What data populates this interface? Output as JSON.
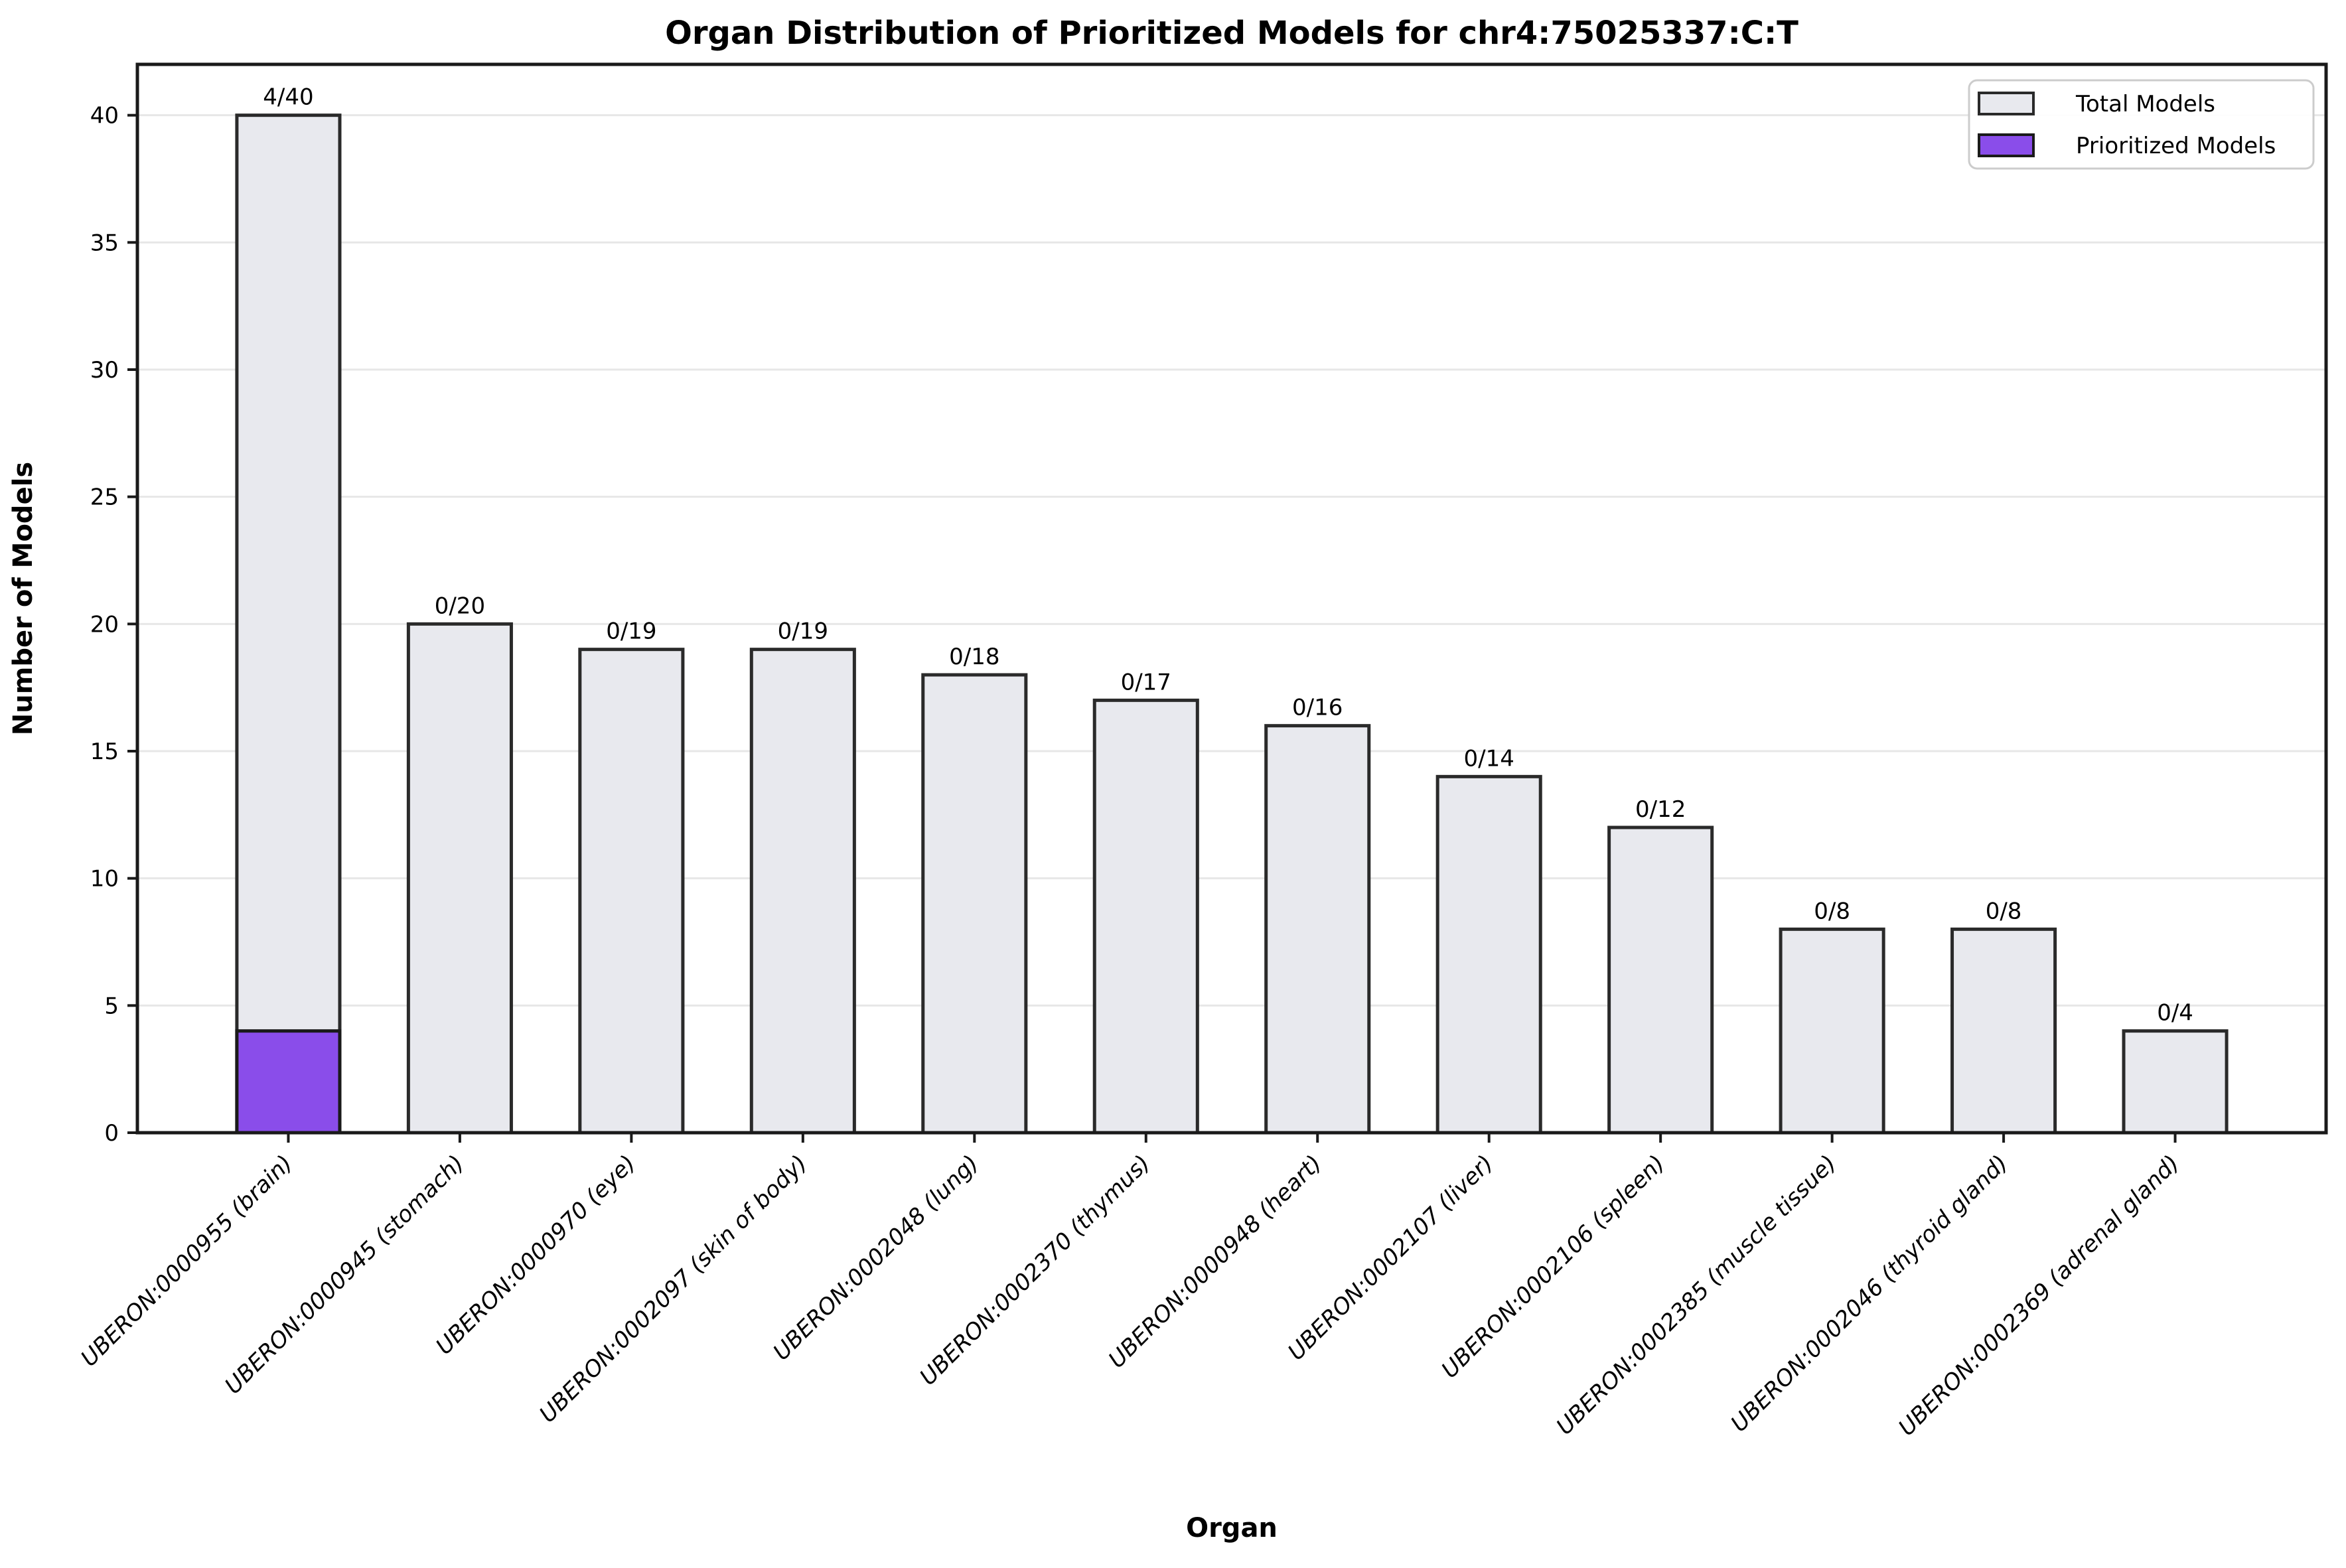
{
  "chart_data": {
    "type": "bar",
    "stacked_overlay": true,
    "title": "Organ Distribution of Prioritized Models for chr4:75025337:C:T",
    "xlabel": "Organ",
    "ylabel": "Number of Models",
    "ylim": [
      0,
      42
    ],
    "yticks": [
      0,
      5,
      10,
      15,
      20,
      25,
      30,
      35,
      40
    ],
    "grid": "horizontal",
    "legend_position": "upper right",
    "categories": [
      "UBERON:0000955 (brain)",
      "UBERON:0000945 (stomach)",
      "UBERON:0000970 (eye)",
      "UBERON:0002097 (skin of body)",
      "UBERON:0002048 (lung)",
      "UBERON:0002370 (thymus)",
      "UBERON:0000948 (heart)",
      "UBERON:0002107 (liver)",
      "UBERON:0002106 (spleen)",
      "UBERON:0002385 (muscle tissue)",
      "UBERON:0002046 (thyroid gland)",
      "UBERON:0002369 (adrenal gland)"
    ],
    "series": [
      {
        "name": "Total Models",
        "color": "#e8e9ee",
        "edge_color": "#2a2a2a",
        "values": [
          40,
          20,
          19,
          19,
          18,
          17,
          16,
          14,
          12,
          8,
          8,
          4
        ]
      },
      {
        "name": "Prioritized Models",
        "color": "#8a4dea",
        "edge_color": "#1a1a1a",
        "values": [
          4,
          0,
          0,
          0,
          0,
          0,
          0,
          0,
          0,
          0,
          0,
          0
        ]
      }
    ],
    "bar_labels": [
      "4/40",
      "0/20",
      "0/19",
      "0/19",
      "0/18",
      "0/17",
      "0/16",
      "0/14",
      "0/12",
      "0/8",
      "0/8",
      "0/4"
    ],
    "colors": {
      "background": "#ffffff",
      "gridline": "#e7e7e7",
      "spine": "#1a1a1a",
      "legend_border": "#cccccc"
    }
  }
}
